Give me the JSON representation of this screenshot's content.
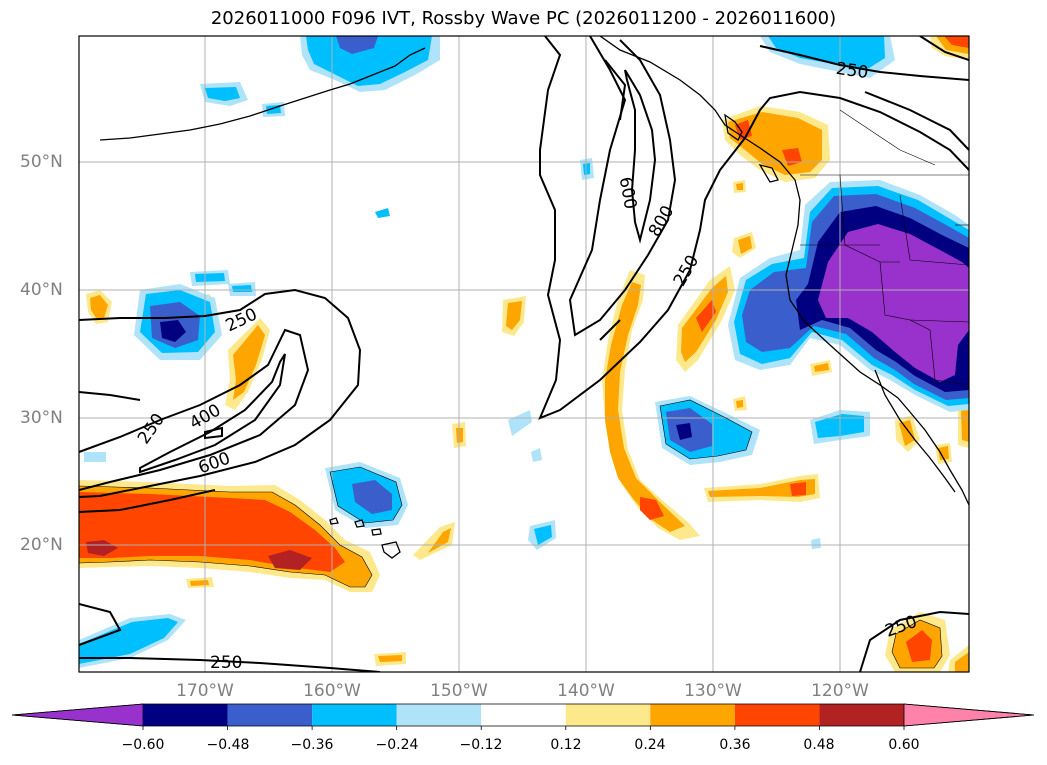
{
  "title": "2026011000 F096 IVT, Rossby Wave PC (2026011200 - 2026011600)",
  "map": {
    "latitude_labels": [
      "50°N",
      "40°N",
      "30°N",
      "20°N"
    ],
    "longitude_labels": [
      "170°W",
      "160°W",
      "150°W",
      "140°W",
      "130°W",
      "120°W"
    ],
    "contour_labels": [
      "250",
      "400",
      "600",
      "250",
      "250",
      "600",
      "800",
      "250",
      "250",
      "250"
    ]
  },
  "colorbar": {
    "ticks": [
      "−0.60",
      "−0.48",
      "−0.36",
      "−0.24",
      "−0.12",
      "0.12",
      "0.24",
      "0.36",
      "0.48",
      "0.60"
    ],
    "colors": {
      "under": "#9932cc",
      "bins": [
        "#000080",
        "#3a5fcd",
        "#00bfff",
        "#afe3fa",
        "#ffffff",
        "#fde98b",
        "#ffa500",
        "#ff4500",
        "#b22222"
      ],
      "over": "#ff82ab"
    }
  }
}
